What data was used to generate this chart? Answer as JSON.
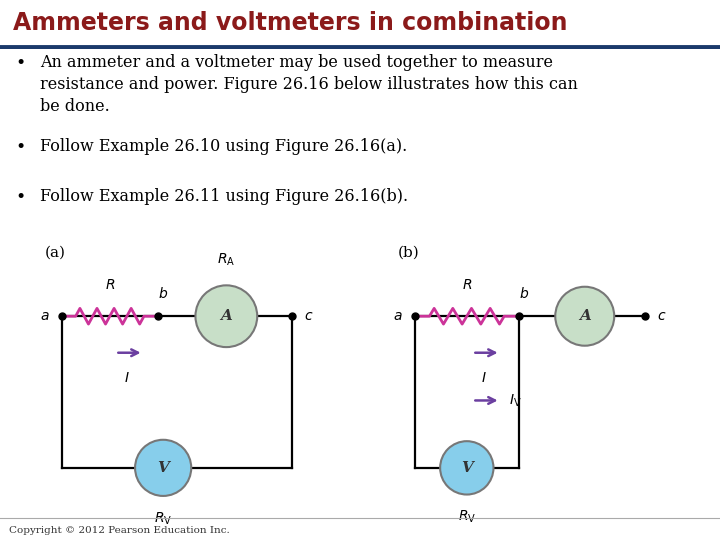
{
  "title": "Ammeters and voltmeters in combination",
  "title_color": "#8B1A1A",
  "title_fontsize": 17,
  "separator_color": "#1B3A6B",
  "bullet_color": "#000000",
  "bullet_fontsize": 11.5,
  "bullets": [
    "An ammeter and a voltmeter may be used together to measure\nresistance and power. Figure 26.16 below illustrates how this can\nbe done.",
    "Follow Example 26.10 using Figure 26.16(a).",
    "Follow Example 26.11 using Figure 26.16(b)."
  ],
  "copyright": "Copyright © 2012 Pearson Education Inc.",
  "bg_color": "#FFFFFF",
  "resistor_color": "#CC3399",
  "ammeter_color": "#C8DFC8",
  "voltmeter_color": "#87CEEB",
  "arrow_color": "#6B3FA0",
  "wire_color": "#000000",
  "node_color": "#000000",
  "label_color": "#000000",
  "circuit_label_fontsize": 10,
  "ab_label_fontsize": 10
}
